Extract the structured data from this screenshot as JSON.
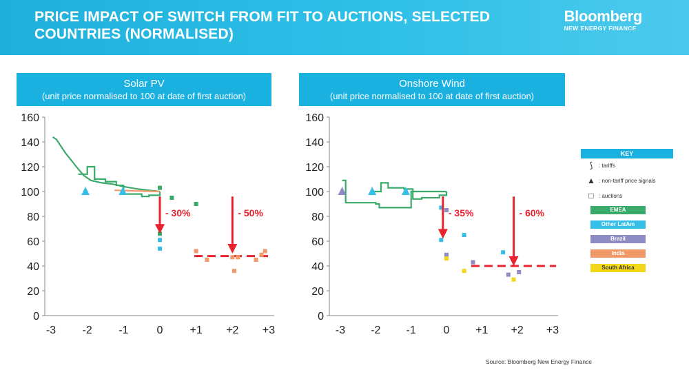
{
  "header": {
    "title": "PRICE IMPACT OF SWITCH FROM FIT TO AUCTIONS, SELECTED COUNTRIES (NORMALISED)",
    "logo_main": "Bloomberg",
    "logo_sub": "NEW ENERGY FINANCE"
  },
  "colors": {
    "EMEA": "#3aaa6a",
    "Other LatAm": "#35bfe8",
    "Brazil": "#8f8cc4",
    "India": "#f2996a",
    "South Africa": "#f3d71b",
    "arrow": "#e8222e",
    "auction_line": "#e8222e",
    "header": "#1ab0e0"
  },
  "key": {
    "title": "KEY",
    "items": [
      {
        "symbol": "tariffs-curve-icon",
        "label": ": tariffs"
      },
      {
        "symbol": "triangle-icon",
        "label": ": non-tariff price signals"
      },
      {
        "symbol": "square-icon",
        "label": ": auctions"
      }
    ],
    "regions": [
      "EMEA",
      "Other LatAm",
      "Brazil",
      "India",
      "South Africa"
    ]
  },
  "source": "Source: Bloomberg New Energy Finance",
  "chart_data": [
    {
      "type": "line",
      "title": "Solar PV",
      "subtitle": "(unit price normalised to 100 at date of first auction)",
      "xlabel": "",
      "ylabel": "",
      "x_ticks": [
        "-3",
        "-2",
        "-1",
        "0",
        "+1",
        "+2",
        "+3"
      ],
      "xlim": [
        -3,
        3
      ],
      "ylim": [
        0,
        160
      ],
      "y_ticks": [
        0,
        20,
        40,
        60,
        80,
        100,
        120,
        140,
        160
      ],
      "grid": false,
      "tariff_series": [
        {
          "name": "EMEA",
          "points": [
            [
              -2.95,
              144
            ],
            [
              -2.85,
              142
            ],
            [
              -2.6,
              131
            ],
            [
              -2.3,
              120
            ],
            [
              -2.1,
              113
            ],
            [
              -1.9,
              109
            ],
            [
              -1.6,
              107
            ],
            [
              -1.3,
              106
            ],
            [
              -1.0,
              104
            ],
            [
              -0.6,
              102
            ],
            [
              -0.3,
              101
            ],
            [
              0,
              100
            ]
          ]
        },
        {
          "name": "EMEA",
          "points": [
            [
              -2.25,
              114
            ],
            [
              -2.0,
              114
            ],
            [
              -2.0,
              120
            ],
            [
              -1.8,
              120
            ],
            [
              -1.8,
              110
            ],
            [
              -1.5,
              110
            ],
            [
              -1.5,
              108
            ],
            [
              -1.2,
              108
            ],
            [
              -1.2,
              105
            ],
            [
              -1.0,
              105
            ],
            [
              -1.0,
              98
            ],
            [
              -0.5,
              98
            ],
            [
              -0.5,
              96
            ],
            [
              -0.3,
              96
            ],
            [
              -0.3,
              97
            ],
            [
              0,
              97
            ],
            [
              0,
              100
            ]
          ]
        },
        {
          "name": "India",
          "points": [
            [
              -1.25,
              101
            ],
            [
              0,
              100
            ]
          ]
        }
      ],
      "triangles": [
        {
          "name": "Other LatAm",
          "x": -2.05,
          "y": 100
        },
        {
          "name": "Other LatAm",
          "x": -1.02,
          "y": 100
        }
      ],
      "auctions": [
        {
          "name": "EMEA",
          "x": 0,
          "y": 103
        },
        {
          "name": "EMEA",
          "x": 0.33,
          "y": 95
        },
        {
          "name": "EMEA",
          "x": 1.0,
          "y": 90
        },
        {
          "name": "EMEA",
          "x": 0,
          "y": 66
        },
        {
          "name": "Other LatAm",
          "x": 0,
          "y": 61
        },
        {
          "name": "Other LatAm",
          "x": 0,
          "y": 54
        },
        {
          "name": "India",
          "x": 1.0,
          "y": 52
        },
        {
          "name": "India",
          "x": 1.3,
          "y": 45
        },
        {
          "name": "India",
          "x": 2.0,
          "y": 47
        },
        {
          "name": "India",
          "x": 2.15,
          "y": 47
        },
        {
          "name": "India",
          "x": 2.05,
          "y": 36
        },
        {
          "name": "India",
          "x": 2.65,
          "y": 45
        },
        {
          "name": "India",
          "x": 2.8,
          "y": 49
        },
        {
          "name": "India",
          "x": 2.9,
          "y": 52
        }
      ],
      "dashed_line": {
        "y": 48,
        "x_from": 0.95,
        "x_to": 3.1
      },
      "arrows": [
        {
          "x": 0,
          "y_from": 96,
          "y_to": 66,
          "label": "- 30%"
        },
        {
          "x": 2.0,
          "y_from": 96,
          "y_to": 50,
          "label": "- 50%"
        }
      ]
    },
    {
      "type": "line",
      "title": "Onshore Wind",
      "subtitle": "(unit price normalised to 100 at date of first auction)",
      "xlabel": "",
      "ylabel": "",
      "x_ticks": [
        "-3",
        "-2",
        "-1",
        "0",
        "+1",
        "+2",
        "+3"
      ],
      "xlim": [
        -3,
        3
      ],
      "ylim": [
        0,
        160
      ],
      "y_ticks": [
        0,
        20,
        40,
        60,
        80,
        100,
        120,
        140,
        160
      ],
      "grid": false,
      "tariff_series": [
        {
          "name": "EMEA",
          "points": [
            [
              -2.95,
              109
            ],
            [
              -2.85,
              109
            ],
            [
              -2.85,
              91
            ],
            [
              -2.0,
              91
            ],
            [
              -2.0,
              90
            ],
            [
              -1.9,
              90
            ],
            [
              -1.9,
              87
            ],
            [
              -1.0,
              87
            ],
            [
              -1.0,
              100
            ],
            [
              0,
              100
            ]
          ]
        },
        {
          "name": "EMEA",
          "points": [
            [
              -2.1,
              100
            ],
            [
              -1.85,
              100
            ],
            [
              -1.85,
              107
            ],
            [
              -1.65,
              107
            ],
            [
              -1.65,
              103
            ],
            [
              -1.2,
              103
            ],
            [
              -1.2,
              102
            ],
            [
              -0.95,
              102
            ],
            [
              -0.95,
              94
            ],
            [
              -0.7,
              94
            ],
            [
              -0.7,
              95
            ],
            [
              -0.2,
              95
            ],
            [
              -0.2,
              97
            ],
            [
              0,
              97
            ],
            [
              0,
              100
            ]
          ]
        }
      ],
      "triangles": [
        {
          "name": "Brazil",
          "x": -2.95,
          "y": 100
        },
        {
          "name": "Other LatAm",
          "x": -2.1,
          "y": 100
        },
        {
          "name": "Other LatAm",
          "x": -1.15,
          "y": 100
        }
      ],
      "auctions": [
        {
          "name": "Other LatAm",
          "x": -0.15,
          "y": 87
        },
        {
          "name": "Brazil",
          "x": 0,
          "y": 85
        },
        {
          "name": "Other LatAm",
          "x": -0.15,
          "y": 61
        },
        {
          "name": "Other LatAm",
          "x": 0.5,
          "y": 65
        },
        {
          "name": "Brazil",
          "x": 0,
          "y": 49
        },
        {
          "name": "South Africa",
          "x": 0,
          "y": 46
        },
        {
          "name": "Brazil",
          "x": 0.75,
          "y": 43
        },
        {
          "name": "South Africa",
          "x": 0.5,
          "y": 36
        },
        {
          "name": "Other LatAm",
          "x": 1.6,
          "y": 51
        },
        {
          "name": "Brazil",
          "x": 1.75,
          "y": 33
        },
        {
          "name": "Brazil",
          "x": 2.05,
          "y": 35
        },
        {
          "name": "South Africa",
          "x": 1.9,
          "y": 29
        }
      ],
      "dashed_line": {
        "y": 40,
        "x_from": 0.7,
        "x_to": 3.1
      },
      "arrows": [
        {
          "x": -0.1,
          "y_from": 96,
          "y_to": 62,
          "label": "- 35%"
        },
        {
          "x": 1.9,
          "y_from": 96,
          "y_to": 40,
          "label": "- 60%"
        }
      ]
    }
  ]
}
